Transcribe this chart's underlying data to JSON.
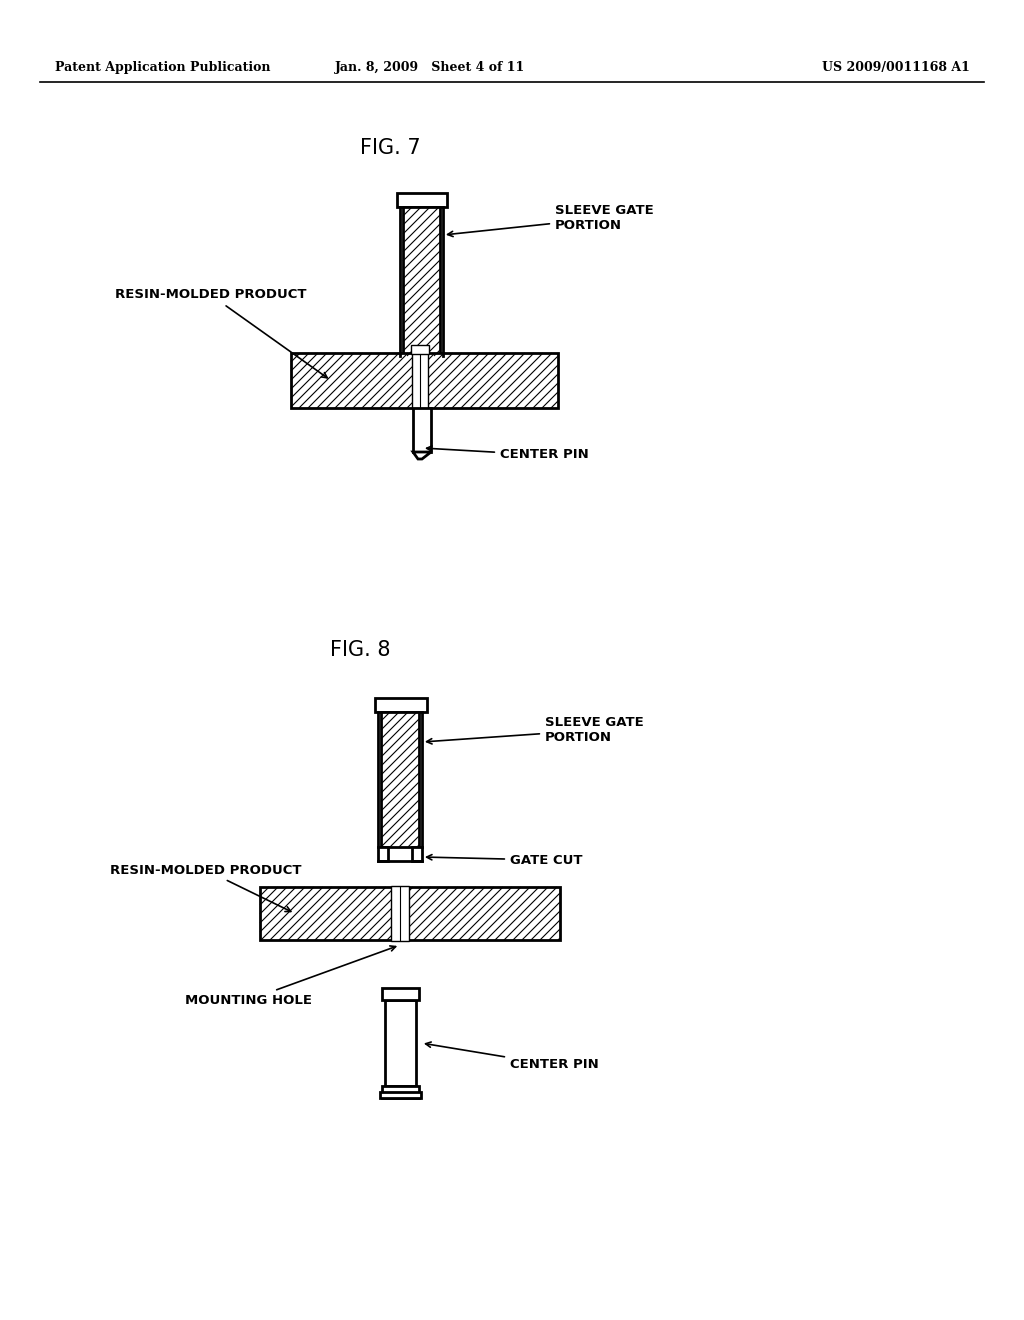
{
  "bg_color": "#ffffff",
  "line_color": "#000000",
  "header": {
    "left": "Patent Application Publication",
    "center": "Jan. 8, 2009   Sheet 4 of 11",
    "right": "US 2009/0011168 A1"
  },
  "fig7_title": "FIG. 7",
  "fig8_title": "FIG. 8",
  "fig7_labels": {
    "resin_molded_product": "RESIN-MOLDED PRODUCT",
    "sleeve_gate_portion": "SLEEVE GATE\nPORTION",
    "center_pin": "CENTER PIN"
  },
  "fig8_labels": {
    "resin_molded_product": "RESIN-MOLDED PRODUCT",
    "sleeve_gate_portion": "SLEEVE GATE\nPORTION",
    "gate_cut": "GATE CUT",
    "mounting_hole": "MOUNTING HOLE",
    "center_pin": "CENTER PIN"
  }
}
